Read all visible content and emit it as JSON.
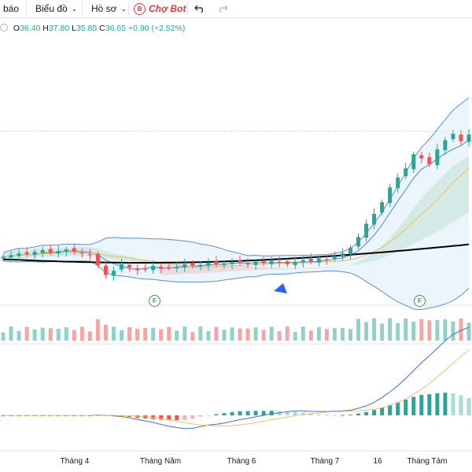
{
  "toolbar": {
    "alert_label": "i báo",
    "chart_label": "Biểu đồ",
    "profile_label": "Hồ sơ",
    "bot_badge": "B",
    "bot_label": "Chợ Bot",
    "chevron_icon": "chevron-down-icon",
    "undo_icon": "undo-icon",
    "redo_icon": "redo-icon"
  },
  "ohlc": {
    "open_key": "O",
    "open": "36.40",
    "high_key": "H",
    "high": "37.80",
    "low_key": "L",
    "low": "35.85",
    "close_key": "C",
    "close": "36.65",
    "change": "+0.90 (+2.52%)"
  },
  "events": [
    {
      "label": "F"
    },
    {
      "label": "F"
    }
  ],
  "x_axis": {
    "labels": [
      "Tháng 4",
      "Tháng Năm",
      "Tháng 6",
      "Tháng 7",
      "16",
      "Tháng Tám"
    ]
  },
  "colors": {
    "up": "#26a69a",
    "down": "#ef5350",
    "bb_line": "#5b8fd6",
    "ma_long": "#000000",
    "ma_mid": "#e8c14a",
    "macd_line": "#3d6fd9",
    "signal_line": "#e9c46a",
    "cloud_green": "#b8e0c0",
    "cloud_red": "#f3b7b5",
    "event": "#2ea043",
    "marker": "#2962ff"
  },
  "chart_data": {
    "type": "candlestick",
    "title": "",
    "xlabel": "",
    "ylabel": "",
    "x_tick_labels": [
      "Tháng 4",
      "Tháng Năm",
      "Tháng 6",
      "Tháng 7",
      "16",
      "Tháng Tám"
    ],
    "last_bar": {
      "open": 36.4,
      "high": 37.8,
      "low": 35.85,
      "close": 36.65,
      "change": 0.9,
      "change_pct": 2.52
    },
    "close_index": [
      21.2,
      21.4,
      21.6,
      21.5,
      21.8,
      22.0,
      21.7,
      21.9,
      22.1,
      21.8,
      21.6,
      21.4,
      20.2,
      19.0,
      19.5,
      20.3,
      19.9,
      19.6,
      19.7,
      20.1,
      19.8,
      19.9,
      20.0,
      20.3,
      20.1,
      20.2,
      20.5,
      20.3,
      20.4,
      20.6,
      20.5,
      20.3,
      20.6,
      20.4,
      20.7,
      20.5,
      20.3,
      20.6,
      20.8,
      20.6,
      21.0,
      20.8,
      21.3,
      21.6,
      22.3,
      23.6,
      25.2,
      26.4,
      27.8,
      29.6,
      30.8,
      31.9,
      33.6,
      33.1,
      32.4,
      34.2,
      35.3,
      36.1,
      35.2,
      36.0
    ],
    "series": [
      {
        "name": "",
        "role": "volume"
      },
      {
        "name": "",
        "role": "macd"
      }
    ]
  }
}
